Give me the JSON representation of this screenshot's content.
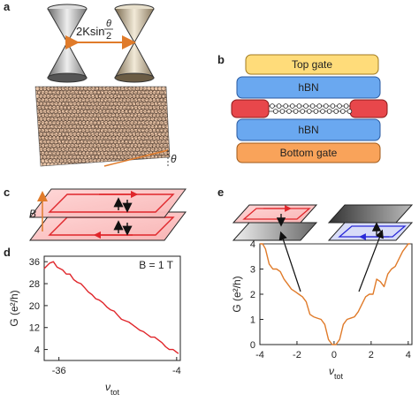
{
  "panels": {
    "a": {
      "label": "a",
      "separation_label_main": "2Ksin",
      "separation_label_theta": "θ",
      "separation_label_den": "2",
      "angle_label": "θ"
    },
    "b": {
      "label": "b",
      "layers": [
        "Top gate",
        "hBN",
        "hBN",
        "Bottom gate"
      ],
      "colors": {
        "top_gate": "#ffdc7a",
        "hbn": "#6aa8f0",
        "bottom_gate": "#f9a35a",
        "contact": "#e8474b"
      }
    },
    "c": {
      "label": "c",
      "field_label": "B"
    },
    "d": {
      "label": "d",
      "annotation": "B = 1 T"
    },
    "e": {
      "label": "e"
    }
  },
  "chart_data": [
    {
      "panel": "d",
      "type": "line",
      "title": "",
      "xlabel": "ν_tot",
      "ylabel": "G (e²/h)",
      "xlim": [
        -40,
        -3
      ],
      "ylim": [
        0,
        38
      ],
      "xticks": [
        "-36",
        "-4"
      ],
      "yticks": [
        "4",
        "12",
        "20",
        "28",
        "36"
      ],
      "annotation": "B = 1 T",
      "color": "#e0262b",
      "series": [
        {
          "x": [
            -40,
            -38.5,
            -37.5,
            -36.5,
            -35,
            -34,
            -33,
            -32,
            -31,
            -30,
            -29,
            -28,
            -27,
            -26,
            -25,
            -24,
            -23,
            -22,
            -21,
            -20,
            -19,
            -18,
            -17,
            -16,
            -15,
            -14,
            -13,
            -12,
            -11,
            -10,
            -9,
            -8,
            -7,
            -6,
            -5,
            -4.5,
            -4,
            -3.5
          ],
          "y": [
            33.5,
            35.5,
            36,
            34,
            33,
            31.5,
            31.5,
            29.5,
            28.5,
            28,
            26.5,
            25,
            24,
            22.5,
            22,
            21,
            19.5,
            18.5,
            18,
            16.5,
            15,
            14.5,
            14,
            13,
            12,
            11,
            10.5,
            9.5,
            8.5,
            8.5,
            7.5,
            6.5,
            5,
            4,
            4,
            3.5,
            3,
            2.5
          ]
        }
      ]
    },
    {
      "panel": "e",
      "type": "line",
      "title": "",
      "xlabel": "ν_tot",
      "ylabel": "G (e²/h)",
      "xlim": [
        -4,
        4.2
      ],
      "ylim": [
        0,
        4
      ],
      "xticks": [
        "-4",
        "-2",
        "0",
        "2",
        "4"
      ],
      "yticks": [
        "0",
        "1",
        "2",
        "3",
        "4"
      ],
      "reference_line": 4,
      "color": "#e07b2a",
      "series": [
        {
          "x": [
            -4,
            -3.85,
            -3.7,
            -3.5,
            -3.3,
            -3.1,
            -2.9,
            -2.7,
            -2.5,
            -2.3,
            -2.1,
            -1.9,
            -1.7,
            -1.5,
            -1.3,
            -1.1,
            -0.9,
            -0.7,
            -0.5,
            -0.3,
            -0.1,
            0,
            0.1,
            0.3,
            0.5,
            0.7,
            0.9,
            1.1,
            1.3,
            1.5,
            1.7,
            1.9,
            2.1,
            2.3,
            2.5,
            2.7,
            2.9,
            3.1,
            3.3,
            3.5,
            3.7,
            3.9,
            4.0,
            4.1
          ],
          "y": [
            4.0,
            4.0,
            3.8,
            3.2,
            3.0,
            3.0,
            2.9,
            2.6,
            2.4,
            2.2,
            2.1,
            2.0,
            1.9,
            1.7,
            1.2,
            1.1,
            1.05,
            1.0,
            0.8,
            0.2,
            0.0,
            0.0,
            0.0,
            0.2,
            0.8,
            1.0,
            1.05,
            1.1,
            1.3,
            1.6,
            1.9,
            2.0,
            2.0,
            2.6,
            2.5,
            2.3,
            2.8,
            3.0,
            3.1,
            3.4,
            3.7,
            3.9,
            4.0,
            4.0
          ]
        }
      ]
    }
  ]
}
